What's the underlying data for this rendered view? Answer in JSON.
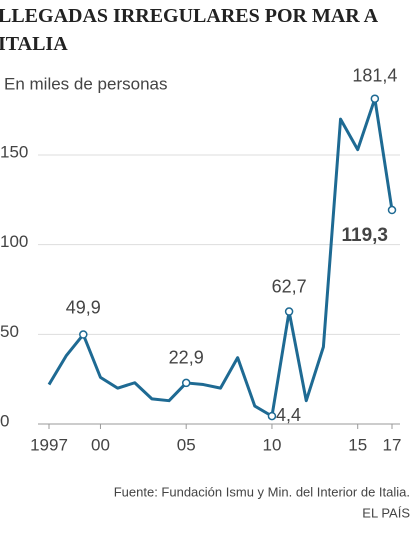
{
  "chart_data": {
    "type": "line",
    "title": "LLEGADAS IRREGULARES POR MAR A ITALIA",
    "subtitle": "En miles de personas",
    "source": "Fuente: Fundación Ismu y Min. del Interior de Italia.",
    "credit": "EL PAÍS",
    "x": [
      1997,
      1998,
      1999,
      2000,
      2001,
      2002,
      2003,
      2004,
      2005,
      2006,
      2007,
      2008,
      2009,
      2010,
      2011,
      2012,
      2013,
      2014,
      2015,
      2016,
      2017
    ],
    "series": [
      {
        "name": "Llegadas",
        "color": "#1e6a93",
        "values": [
          22,
          38,
          49.9,
          26,
          20,
          23,
          14,
          13,
          22.9,
          22,
          20,
          37,
          10,
          4.4,
          62.7,
          13,
          43,
          170,
          153,
          181.4,
          119.3
        ],
        "value_labels": [
          null,
          null,
          "49,9",
          null,
          null,
          null,
          null,
          null,
          "22,9",
          null,
          null,
          null,
          null,
          "4,4",
          "62,7",
          null,
          null,
          null,
          null,
          "181,4",
          "119,3"
        ]
      }
    ],
    "xlim": [
      1997,
      2017
    ],
    "xticks": [
      1997,
      {
        "value": 2000,
        "label": "00"
      },
      {
        "value": 2005,
        "label": "05"
      },
      {
        "value": 2010,
        "label": "10"
      },
      {
        "value": 2015,
        "label": "15"
      },
      {
        "value": 2017,
        "label": "17"
      }
    ],
    "ylim": [
      0,
      190
    ],
    "yticks": [
      0,
      50,
      100,
      150
    ],
    "grid": true
  }
}
